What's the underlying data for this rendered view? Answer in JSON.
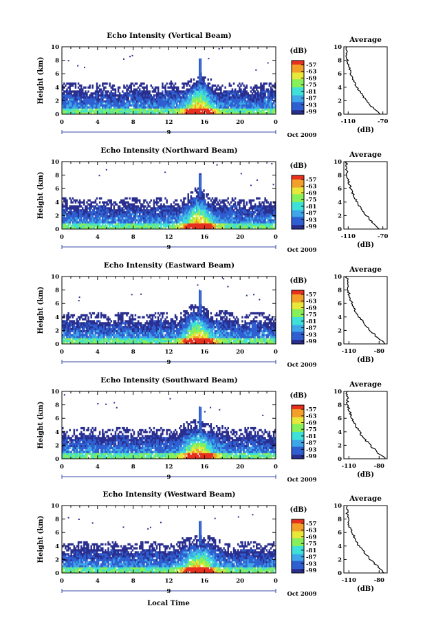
{
  "chart_data": [
    {
      "type": "heatmap",
      "title": "Echo Intensity (Vertical Beam)",
      "ylabel": "Height (km)",
      "x_ticks": [
        "0",
        "4",
        "8",
        "12",
        "16",
        "20",
        "0"
      ],
      "y_ticks": [
        "0",
        "2",
        "4",
        "6",
        "8",
        "10"
      ],
      "xlim": [
        0,
        24
      ],
      "ylim": [
        0,
        10
      ],
      "date_marker": "9",
      "date_label": "Oct 2009",
      "colorbar": {
        "unit": "(dB)",
        "ticks": [
          "-57",
          "-63",
          "-69",
          "-75",
          "-81",
          "-87",
          "-93",
          "-99"
        ]
      },
      "profile": {
        "title": "Average",
        "xlabel": "(dB)",
        "x_ticks": [
          "-110",
          "-70"
        ],
        "xlim": [
          -115,
          -65
        ],
        "y_ticks": [
          "0",
          "2",
          "4",
          "6",
          "8",
          "10"
        ],
        "ylim": [
          0,
          10
        ]
      }
    },
    {
      "type": "heatmap",
      "title": "Echo Intensity (Northward Beam)",
      "ylabel": "Height (km)",
      "x_ticks": [
        "0",
        "4",
        "8",
        "12",
        "16",
        "20",
        "0"
      ],
      "y_ticks": [
        "0",
        "2",
        "4",
        "6",
        "8",
        "10"
      ],
      "xlim": [
        0,
        24
      ],
      "ylim": [
        0,
        10
      ],
      "date_marker": "9",
      "date_label": "Oct 2009",
      "colorbar": {
        "unit": "(dB)",
        "ticks": [
          "-57",
          "-63",
          "-69",
          "-75",
          "-81",
          "-87",
          "-93",
          "-99"
        ]
      },
      "profile": {
        "title": "Average",
        "xlabel": "(dB)",
        "x_ticks": [
          "-110",
          "-70"
        ],
        "xlim": [
          -115,
          -65
        ],
        "y_ticks": [
          "0",
          "2",
          "4",
          "6",
          "8",
          "10"
        ],
        "ylim": [
          0,
          10
        ]
      }
    },
    {
      "type": "heatmap",
      "title": "Echo Intensity (Eastward Beam)",
      "ylabel": "Height (km)",
      "x_ticks": [
        "0",
        "4",
        "8",
        "12",
        "16",
        "20",
        "0"
      ],
      "y_ticks": [
        "0",
        "2",
        "4",
        "6",
        "8",
        "10"
      ],
      "xlim": [
        0,
        24
      ],
      "ylim": [
        0,
        10
      ],
      "date_marker": "9",
      "date_label": "Oct 2009",
      "colorbar": {
        "unit": "(dB)",
        "ticks": [
          "-57",
          "-63",
          "-69",
          "-75",
          "-81",
          "-87",
          "-93",
          "-99"
        ]
      },
      "profile": {
        "title": "Average",
        "xlabel": "(dB)",
        "x_ticks": [
          "-110",
          "-80"
        ],
        "xlim": [
          -115,
          -72
        ],
        "y_ticks": [
          "0",
          "2",
          "4",
          "6",
          "8",
          "10"
        ],
        "ylim": [
          0,
          10
        ]
      }
    },
    {
      "type": "heatmap",
      "title": "Echo Intensity (Southward Beam)",
      "ylabel": "Height (km)",
      "x_ticks": [
        "0",
        "4",
        "8",
        "12",
        "16",
        "20",
        "0"
      ],
      "y_ticks": [
        "0",
        "2",
        "4",
        "6",
        "8",
        "10"
      ],
      "xlim": [
        0,
        24
      ],
      "ylim": [
        0,
        10
      ],
      "date_marker": "9",
      "date_label": "Oct 2009",
      "colorbar": {
        "unit": "(dB)",
        "ticks": [
          "-57",
          "-63",
          "-69",
          "-75",
          "-81",
          "-87",
          "-93",
          "-99"
        ]
      },
      "profile": {
        "title": "Average",
        "xlabel": "(dB)",
        "x_ticks": [
          "-110",
          "-80"
        ],
        "xlim": [
          -115,
          -72
        ],
        "y_ticks": [
          "0",
          "2",
          "4",
          "6",
          "8",
          "10"
        ],
        "ylim": [
          0,
          10
        ]
      }
    },
    {
      "type": "heatmap",
      "title": "Echo Intensity (Westward Beam)",
      "ylabel": "Height (km)",
      "xlabel": "Local Time",
      "x_ticks": [
        "0",
        "4",
        "8",
        "12",
        "16",
        "20",
        "0"
      ],
      "y_ticks": [
        "0",
        "2",
        "4",
        "6",
        "8",
        "10"
      ],
      "xlim": [
        0,
        24
      ],
      "ylim": [
        0,
        10
      ],
      "date_marker": "9",
      "date_label": "Oct 2009",
      "colorbar": {
        "unit": "(dB)",
        "ticks": [
          "-57",
          "-63",
          "-69",
          "-75",
          "-81",
          "-87",
          "-93",
          "-99"
        ]
      },
      "profile": {
        "title": "Average",
        "xlabel": "(dB)",
        "x_ticks": [
          "-110",
          "-80"
        ],
        "xlim": [
          -115,
          -72
        ],
        "y_ticks": [
          "0",
          "2",
          "4",
          "6",
          "8",
          "10"
        ],
        "ylim": [
          0,
          10
        ]
      }
    }
  ],
  "colors": {
    "scale": [
      "#2a2f8f",
      "#2f5fd0",
      "#3fa6e8",
      "#3fe0d8",
      "#86ef5a",
      "#e8e83a",
      "#f3a02a",
      "#e8301e"
    ]
  }
}
